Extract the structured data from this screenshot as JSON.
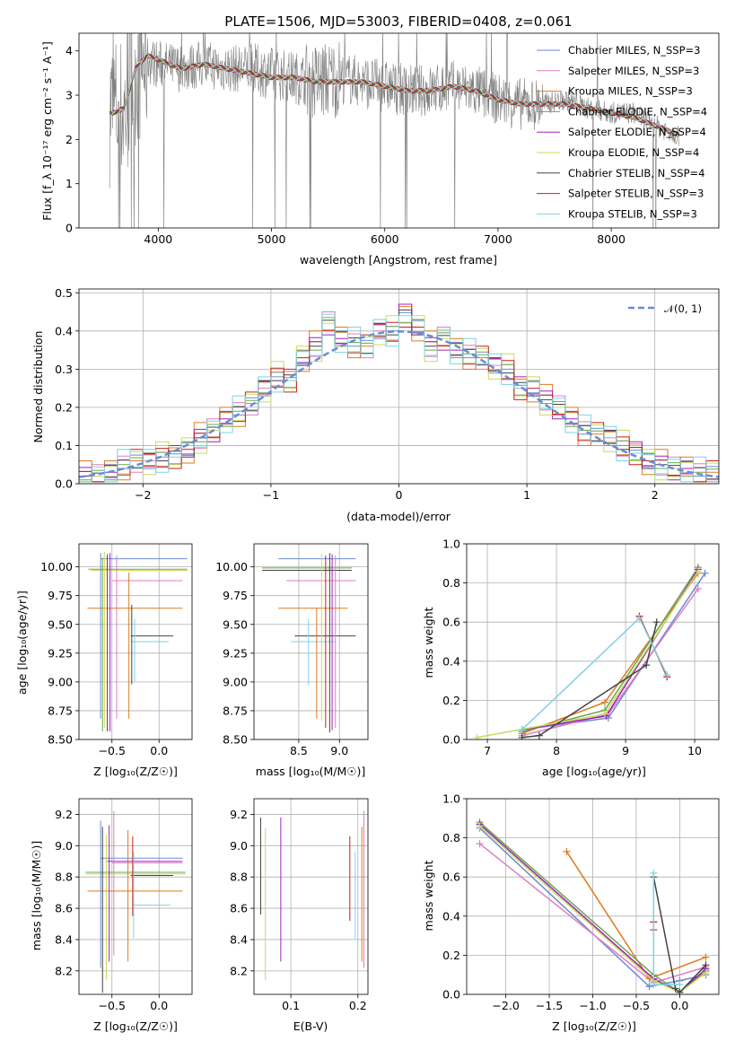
{
  "colors": [
    "#6a8bd6",
    "#e07ec0",
    "#e07a1e",
    "#6aa84f",
    "#a020c0",
    "#c8dc5a",
    "#444444",
    "#c81e1e",
    "#7dd3e0"
  ],
  "spectrum": {
    "title": "PLATE=1506, MJD=53003, FIBERID=0408, z=0.061",
    "xlabel": "wavelength [Angstrom, rest frame]",
    "ylabel": "Flux [f_λ 10⁻¹⁷ erg cm⁻² s⁻¹ A⁻¹]",
    "legend": [
      "Chabrier MILES, N_SSP=3",
      "Salpeter MILES, N_SSP=3",
      "Kroupa MILES, N_SSP=3",
      "Chabrier ELODIE, N_SSP=4",
      "Salpeter ELODIE, N_SSP=4",
      "Kroupa ELODIE, N_SSP=4",
      "Chabrier STELIB, N_SSP=4",
      "Salpeter STELIB, N_SSP=3",
      "Kroupa STELIB, N_SSP=3"
    ]
  },
  "residuals": {
    "xlabel": "(data-model)/error",
    "ylabel": "Normed distribution",
    "legend": "𝒩(0, 1)"
  },
  "panels": {
    "age_Z": {
      "xlabel": "Z [log₁₀(Z/Z☉)]",
      "ylabel": "age  [log₁₀(age/yr)]"
    },
    "age_mass": {
      "xlabel": "mass [log₁₀(M/M☉)]",
      "ylabel": ""
    },
    "weight_age": {
      "xlabel": "age  [log₁₀(age/yr)]",
      "ylabel": "mass weight"
    },
    "mass_Z": {
      "xlabel": "Z [log₁₀(Z/Z☉)]",
      "ylabel": "mass [log₁₀(M/M☉)]"
    },
    "mass_ebv": {
      "xlabel": "E(B-V)",
      "ylabel": ""
    },
    "weight_Z": {
      "xlabel": "Z [log₁₀(Z/Z☉)]",
      "ylabel": "mass weight"
    }
  },
  "chart_data": [
    {
      "type": "line",
      "title": "PLATE=1506, MJD=53003, FIBERID=0408, z=0.061",
      "xlabel": "wavelength [Angstrom, rest frame]",
      "ylabel": "Flux [f_λ 10⁻¹⁷ erg cm⁻² s⁻¹ A⁻¹]",
      "xlim": [
        3300,
        8950
      ],
      "ylim": [
        0,
        4.4
      ],
      "xticks": [
        4000,
        5000,
        6000,
        7000,
        8000
      ],
      "yticks": [
        0,
        1,
        2,
        3,
        4
      ],
      "data_x": [
        3600,
        3700,
        3800,
        3900,
        4000,
        4200,
        4400,
        4600,
        4800,
        5000,
        5200,
        5400,
        5600,
        5800,
        6000,
        6200,
        6400,
        6600,
        6800,
        7000,
        7200,
        7400,
        7600,
        7800,
        8000,
        8200,
        8400,
        8600
      ],
      "data_y": [
        2.7,
        2.6,
        3.6,
        3.8,
        3.7,
        3.6,
        3.7,
        3.6,
        3.6,
        3.5,
        3.4,
        3.3,
        3.4,
        3.3,
        3.2,
        3.1,
        3.1,
        3.2,
        3.1,
        2.9,
        2.8,
        2.8,
        2.9,
        2.7,
        2.6,
        2.6,
        2.3,
        2.1
      ],
      "model_y": [
        2.6,
        2.7,
        3.6,
        3.9,
        3.8,
        3.6,
        3.7,
        3.6,
        3.5,
        3.4,
        3.4,
        3.3,
        3.3,
        3.3,
        3.2,
        3.1,
        3.1,
        3.2,
        3.1,
        2.9,
        2.8,
        2.8,
        2.8,
        2.7,
        2.6,
        2.5,
        2.3,
        2.1
      ]
    },
    {
      "type": "line",
      "xlabel": "(data-model)/error",
      "ylabel": "Normed distribution",
      "xlim": [
        -2.5,
        2.5
      ],
      "ylim": [
        0,
        0.51
      ],
      "xticks": [
        -2,
        -1,
        0,
        1,
        2
      ],
      "yticks": [
        0,
        0.1,
        0.2,
        0.3,
        0.4,
        0.5
      ],
      "hist_centers": [
        -2.45,
        -2.35,
        -2.25,
        -2.15,
        -2.05,
        -1.95,
        -1.85,
        -1.75,
        -1.65,
        -1.55,
        -1.45,
        -1.35,
        -1.25,
        -1.15,
        -1.05,
        -0.95,
        -0.85,
        -0.75,
        -0.65,
        -0.55,
        -0.45,
        -0.35,
        -0.25,
        -0.15,
        -0.05,
        0.05,
        0.15,
        0.25,
        0.35,
        0.45,
        0.55,
        0.65,
        0.75,
        0.85,
        0.95,
        1.05,
        1.15,
        1.25,
        1.35,
        1.45,
        1.55,
        1.65,
        1.75,
        1.85,
        1.95,
        2.05,
        2.15,
        2.25,
        2.35,
        2.45
      ],
      "hist_values": [
        0.02,
        0.02,
        0.03,
        0.05,
        0.06,
        0.06,
        0.07,
        0.07,
        0.09,
        0.12,
        0.14,
        0.17,
        0.19,
        0.21,
        0.25,
        0.28,
        0.27,
        0.33,
        0.36,
        0.42,
        0.38,
        0.37,
        0.36,
        0.4,
        0.4,
        0.44,
        0.41,
        0.36,
        0.38,
        0.35,
        0.34,
        0.33,
        0.31,
        0.3,
        0.25,
        0.25,
        0.22,
        0.2,
        0.17,
        0.14,
        0.13,
        0.12,
        0.1,
        0.08,
        0.06,
        0.05,
        0.04,
        0.04,
        0.03,
        0.03
      ],
      "series": [
        {
          "name": "𝒩(0, 1)",
          "type": "normal",
          "mu": 0,
          "sigma": 1
        }
      ]
    },
    {
      "type": "scatter",
      "xlabel": "Z [log₁₀(Z/Z☉)]",
      "ylabel": "age  [log₁₀(age/yr)]",
      "xlim": [
        -0.85,
        0.35
      ],
      "ylim": [
        8.5,
        10.2
      ],
      "xticks": [
        -0.5,
        0.0
      ],
      "yticks": [
        8.5,
        8.75,
        9.0,
        9.25,
        9.5,
        9.75,
        10.0
      ],
      "vlines": [
        {
          "x": -0.62,
          "y0": 8.68,
          "y1": 10.12,
          "c": 0
        },
        {
          "x": -0.6,
          "y0": 8.57,
          "y1": 10.08,
          "c": 3
        },
        {
          "x": -0.58,
          "y0": 8.6,
          "y1": 10.13,
          "c": 5
        },
        {
          "x": -0.55,
          "y0": 8.57,
          "y1": 10.11,
          "c": 7
        },
        {
          "x": -0.52,
          "y0": 8.57,
          "y1": 10.12,
          "c": 4
        },
        {
          "x": -0.45,
          "y0": 8.68,
          "y1": 10.1,
          "c": 1
        },
        {
          "x": -0.32,
          "y0": 8.68,
          "y1": 9.95,
          "c": 2
        },
        {
          "x": -0.29,
          "y0": 8.98,
          "y1": 9.67,
          "c": 6
        },
        {
          "x": -0.26,
          "y0": 9.0,
          "y1": 9.55,
          "c": 8
        }
      ],
      "hlines": [
        {
          "y": 10.07,
          "x0": -0.62,
          "x1": 0.3,
          "c": 0
        },
        {
          "y": 9.98,
          "x0": -0.75,
          "x1": 0.3,
          "c": 3
        },
        {
          "y": 9.97,
          "x0": -0.72,
          "x1": 0.3,
          "c": 5
        },
        {
          "y": 9.88,
          "x0": -0.5,
          "x1": 0.25,
          "c": 1
        },
        {
          "y": 9.64,
          "x0": -0.76,
          "x1": 0.25,
          "c": 2
        },
        {
          "y": 9.4,
          "x0": -0.3,
          "x1": 0.15,
          "c": 6
        },
        {
          "y": 9.35,
          "x0": -0.3,
          "x1": 0.1,
          "c": 8
        }
      ]
    },
    {
      "type": "scatter",
      "xlabel": "mass [log₁₀(M/M☉)]",
      "xlim": [
        7.95,
        9.35
      ],
      "ylim": [
        8.5,
        10.2
      ],
      "xticks": [
        8.5,
        9.0
      ],
      "yticks": [
        8.5,
        8.75,
        9.0,
        9.25,
        9.5,
        9.75,
        10.0
      ],
      "vlines": [
        {
          "x": 8.62,
          "y0": 8.97,
          "y1": 9.55,
          "c": 8
        },
        {
          "x": 8.72,
          "y0": 8.68,
          "y1": 9.64,
          "c": 2
        },
        {
          "x": 8.78,
          "y0": 8.66,
          "y1": 10.11,
          "c": 5
        },
        {
          "x": 8.83,
          "y0": 8.6,
          "y1": 10.1,
          "c": 7
        },
        {
          "x": 8.88,
          "y0": 8.56,
          "y1": 10.12,
          "c": 6
        },
        {
          "x": 8.91,
          "y0": 8.58,
          "y1": 10.11,
          "c": 4
        },
        {
          "x": 8.95,
          "y0": 8.6,
          "y1": 10.1,
          "c": 1
        }
      ],
      "hlines": [
        {
          "y": 10.07,
          "x0": 8.25,
          "x1": 9.2,
          "c": 0
        },
        {
          "y": 9.99,
          "x0": 8.05,
          "x1": 9.15,
          "c": 3
        },
        {
          "y": 9.97,
          "x0": 8.05,
          "x1": 9.15,
          "c": 6
        },
        {
          "y": 9.88,
          "x0": 8.35,
          "x1": 9.2,
          "c": 1
        },
        {
          "y": 9.64,
          "x0": 8.25,
          "x1": 9.1,
          "c": 2
        },
        {
          "y": 9.4,
          "x0": 8.45,
          "x1": 9.2,
          "c": 6
        },
        {
          "y": 9.35,
          "x0": 8.4,
          "x1": 8.95,
          "c": 8
        }
      ]
    },
    {
      "type": "line",
      "xlabel": "age  [log₁₀(age/yr)]",
      "ylabel": "mass weight",
      "xlim": [
        6.7,
        10.35
      ],
      "ylim": [
        0,
        1.0
      ],
      "xticks": [
        7,
        8,
        9,
        10
      ],
      "yticks": [
        0,
        0.2,
        0.4,
        0.6,
        0.8,
        1.0
      ],
      "series": [
        {
          "c": 0,
          "x": [
            7.5,
            8.75,
            10.15
          ],
          "y": [
            0.05,
            0.11,
            0.85
          ]
        },
        {
          "c": 1,
          "x": [
            7.5,
            8.75,
            10.05
          ],
          "y": [
            0.02,
            0.13,
            0.77
          ]
        },
        {
          "c": 2,
          "x": [
            7.5,
            8.7,
            10.05
          ],
          "y": [
            0.03,
            0.19,
            0.85
          ]
        },
        {
          "c": 3,
          "x": [
            7.5,
            8.7,
            10.05
          ],
          "y": [
            0.04,
            0.15,
            0.88
          ]
        },
        {
          "c": 4,
          "x": [
            7.5,
            8.72,
            10.05
          ],
          "y": [
            0.05,
            0.12,
            0.87
          ]
        },
        {
          "c": 5,
          "x": [
            6.85,
            8.7,
            10.05
          ],
          "y": [
            0.01,
            0.13,
            0.86
          ]
        },
        {
          "c": 6,
          "x": [
            7.5,
            7.75,
            9.3,
            9.45
          ],
          "y": [
            0.01,
            0.02,
            0.38,
            0.6
          ]
        },
        {
          "c": 7,
          "x": [
            9.2,
            9.6
          ],
          "y": [
            0.63,
            0.32
          ]
        },
        {
          "c": 8,
          "x": [
            7.5,
            9.2,
            9.6
          ],
          "y": [
            0.05,
            0.62,
            0.33
          ]
        }
      ]
    },
    {
      "type": "scatter",
      "xlabel": "Z [log₁₀(Z/Z☉)]",
      "ylabel": "mass [log₁₀(M/M☉)]",
      "xlim": [
        -0.85,
        0.35
      ],
      "ylim": [
        8.05,
        9.3
      ],
      "xticks": [
        -0.5,
        0.0
      ],
      "yticks": [
        8.2,
        8.4,
        8.6,
        8.8,
        9.0,
        9.2
      ],
      "vlines": [
        {
          "x": -0.62,
          "y0": 8.22,
          "y1": 9.16,
          "c": 0
        },
        {
          "x": -0.6,
          "y0": 8.06,
          "y1": 9.12,
          "c": 6
        },
        {
          "x": -0.56,
          "y0": 8.14,
          "y1": 9.07,
          "c": 5
        },
        {
          "x": -0.53,
          "y0": 8.26,
          "y1": 9.13,
          "c": 4
        },
        {
          "x": -0.48,
          "y0": 8.3,
          "y1": 9.22,
          "c": 1
        },
        {
          "x": -0.33,
          "y0": 8.26,
          "y1": 9.1,
          "c": 2
        },
        {
          "x": -0.28,
          "y0": 8.55,
          "y1": 9.06,
          "c": 7
        },
        {
          "x": -0.27,
          "y0": 8.41,
          "y1": 8.96,
          "c": 8
        }
      ],
      "hlines": [
        {
          "y": 8.92,
          "x0": -0.62,
          "x1": 0.25,
          "c": 0
        },
        {
          "y": 8.89,
          "x0": -0.5,
          "x1": 0.25,
          "c": 1
        },
        {
          "y": 8.9,
          "x0": -0.55,
          "x1": 0.25,
          "c": 4
        },
        {
          "y": 8.83,
          "x0": -0.78,
          "x1": 0.28,
          "c": 3
        },
        {
          "y": 8.82,
          "x0": -0.78,
          "x1": 0.28,
          "c": 5
        },
        {
          "y": 8.81,
          "x0": -0.3,
          "x1": 0.15,
          "c": 6
        },
        {
          "y": 8.71,
          "x0": -0.76,
          "x1": 0.25,
          "c": 2
        },
        {
          "y": 8.62,
          "x0": -0.28,
          "x1": 0.12,
          "c": 8
        }
      ]
    },
    {
      "type": "scatter",
      "xlabel": "E(B-V)",
      "xlim": [
        0.045,
        0.215
      ],
      "ylim": [
        8.05,
        9.3
      ],
      "xticks": [
        0.1,
        0.2
      ],
      "yticks": [
        8.2,
        8.4,
        8.6,
        8.8,
        9.0,
        9.2
      ],
      "vlines": [
        {
          "x": 0.055,
          "y0": 8.56,
          "y1": 9.18,
          "c": 6
        },
        {
          "x": 0.062,
          "y0": 8.14,
          "y1": 9.11,
          "c": 5
        },
        {
          "x": 0.085,
          "y0": 8.26,
          "y1": 9.18,
          "c": 4
        },
        {
          "x": 0.188,
          "y0": 8.52,
          "y1": 9.06,
          "c": 7
        },
        {
          "x": 0.196,
          "y0": 8.4,
          "y1": 8.96,
          "c": 8
        },
        {
          "x": 0.206,
          "y0": 8.26,
          "y1": 9.12,
          "c": 2
        },
        {
          "x": 0.209,
          "y0": 8.22,
          "y1": 9.22,
          "c": 1
        }
      ],
      "hlines": []
    },
    {
      "type": "line",
      "xlabel": "Z [log₁₀(Z/Z☉)]",
      "ylabel": "mass weight",
      "xlim": [
        -2.45,
        0.45
      ],
      "ylim": [
        0,
        1.0
      ],
      "xticks": [
        -2.0,
        -1.5,
        -1.0,
        -0.5,
        0.0
      ],
      "yticks": [
        0,
        0.2,
        0.4,
        0.6,
        0.8,
        1.0
      ],
      "series": [
        {
          "c": 0,
          "x": [
            -2.3,
            -0.35,
            0.0,
            0.3
          ],
          "y": [
            0.85,
            0.04,
            0.07,
            0.1
          ]
        },
        {
          "c": 1,
          "x": [
            -2.3,
            -0.3,
            0.3
          ],
          "y": [
            0.77,
            0.06,
            0.14
          ]
        },
        {
          "c": 2,
          "x": [
            -1.3,
            -0.35,
            0.3
          ],
          "y": [
            0.73,
            0.08,
            0.19
          ]
        },
        {
          "c": 3,
          "x": [
            -2.3,
            -0.3,
            0.0,
            0.3
          ],
          "y": [
            0.88,
            0.1,
            0.01,
            0.12
          ]
        },
        {
          "c": 4,
          "x": [
            -2.3,
            -0.3,
            0.0,
            0.3
          ],
          "y": [
            0.87,
            0.08,
            0.01,
            0.13
          ]
        },
        {
          "c": 5,
          "x": [
            -2.3,
            -0.3,
            0.0,
            0.3
          ],
          "y": [
            0.86,
            0.07,
            0.01,
            0.11
          ]
        },
        {
          "c": 6,
          "x": [
            -0.3,
            -0.05,
            0.0,
            0.3
          ],
          "y": [
            0.6,
            0.03,
            0.01,
            0.15
          ]
        },
        {
          "c": 7,
          "x": [
            -0.3,
            -0.3
          ],
          "y": [
            0.37,
            0.33
          ]
        },
        {
          "c": 8,
          "x": [
            -0.3,
            -0.3,
            0.0
          ],
          "y": [
            0.62,
            0.05,
            0.05
          ]
        }
      ]
    }
  ]
}
